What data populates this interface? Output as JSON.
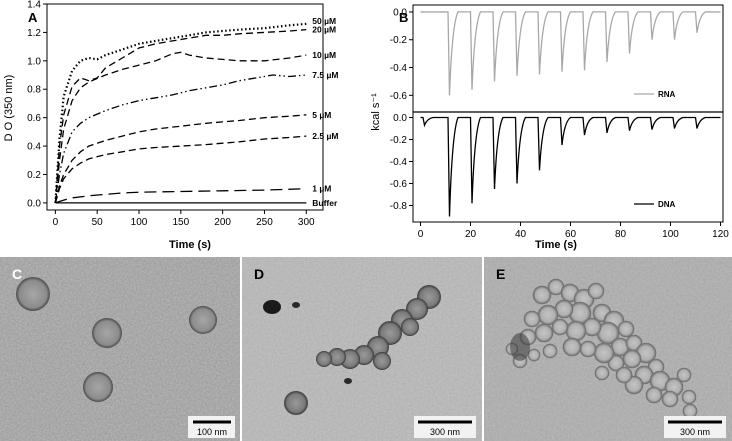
{
  "panel_labels": {
    "a": "A",
    "b": "B",
    "c": "C",
    "d": "D",
    "e": "E"
  },
  "micrographs": {
    "c": {
      "scale_label": "100 nm"
    },
    "d": {
      "scale_label": "300 nm"
    },
    "e": {
      "scale_label": "300 nm"
    }
  },
  "chart_data": [
    {
      "type": "line",
      "panel": "A",
      "xlabel": "Time (s)",
      "ylabel": "D O (350 nm)",
      "xlim": [
        -10,
        320
      ],
      "ylim": [
        -0.05,
        1.4
      ],
      "xticks": [
        0,
        50,
        100,
        150,
        200,
        250,
        300
      ],
      "yticks": [
        0.0,
        0.2,
        0.4,
        0.6,
        0.8,
        1.0,
        1.2,
        1.4
      ],
      "legend": "direct labels at right end of each curve",
      "series": [
        {
          "name": "50 µM",
          "style": "dotted",
          "x": [
            0,
            5,
            10,
            20,
            30,
            40,
            50,
            60,
            80,
            100,
            120,
            140,
            160,
            180,
            200,
            220,
            250,
            280,
            300
          ],
          "y": [
            0,
            0.45,
            0.75,
            0.93,
            1.0,
            1.02,
            1.01,
            1.04,
            1.08,
            1.12,
            1.14,
            1.16,
            1.18,
            1.2,
            1.21,
            1.22,
            1.23,
            1.25,
            1.26
          ]
        },
        {
          "name": "20 µM",
          "style": "dashed",
          "x": [
            0,
            5,
            10,
            20,
            30,
            40,
            50,
            60,
            80,
            100,
            120,
            140,
            160,
            180,
            200,
            220,
            250,
            280,
            300
          ],
          "y": [
            0,
            0.4,
            0.62,
            0.82,
            0.88,
            0.86,
            0.88,
            0.95,
            1.02,
            1.09,
            1.12,
            1.14,
            1.16,
            1.18,
            1.18,
            1.19,
            1.2,
            1.21,
            1.22
          ]
        },
        {
          "name": "10 µM",
          "style": "dashed",
          "x": [
            0,
            5,
            10,
            20,
            30,
            40,
            60,
            80,
            100,
            120,
            140,
            150,
            160,
            180,
            200,
            220,
            250,
            280,
            300
          ],
          "y": [
            0,
            0.3,
            0.52,
            0.72,
            0.81,
            0.85,
            0.9,
            0.94,
            0.97,
            1.0,
            1.05,
            1.06,
            1.04,
            1.02,
            1.01,
            1.0,
            1.0,
            1.02,
            1.04
          ]
        },
        {
          "name": "7.5 µM",
          "style": "dash-dot-dot",
          "x": [
            0,
            5,
            10,
            20,
            30,
            40,
            60,
            80,
            100,
            120,
            140,
            160,
            180,
            200,
            220,
            240,
            260,
            280,
            300
          ],
          "y": [
            0,
            0.2,
            0.35,
            0.5,
            0.56,
            0.6,
            0.65,
            0.69,
            0.72,
            0.74,
            0.76,
            0.79,
            0.81,
            0.83,
            0.86,
            0.88,
            0.9,
            0.89,
            0.9
          ]
        },
        {
          "name": "5 µM",
          "style": "dashed",
          "x": [
            0,
            5,
            10,
            20,
            30,
            40,
            60,
            80,
            100,
            120,
            150,
            180,
            200,
            220,
            250,
            280,
            300
          ],
          "y": [
            0,
            0.12,
            0.2,
            0.3,
            0.36,
            0.4,
            0.44,
            0.47,
            0.5,
            0.52,
            0.54,
            0.56,
            0.57,
            0.58,
            0.6,
            0.61,
            0.62
          ]
        },
        {
          "name": "2.5 µM",
          "style": "dashed",
          "x": [
            0,
            5,
            10,
            20,
            30,
            40,
            60,
            80,
            100,
            120,
            150,
            180,
            200,
            220,
            250,
            280,
            300
          ],
          "y": [
            0,
            0.1,
            0.17,
            0.24,
            0.28,
            0.31,
            0.34,
            0.36,
            0.38,
            0.39,
            0.4,
            0.41,
            0.42,
            0.43,
            0.45,
            0.46,
            0.47
          ]
        },
        {
          "name": "1 µM",
          "style": "long-dashed",
          "x": [
            0,
            5,
            10,
            20,
            40,
            60,
            80,
            100,
            150,
            200,
            250,
            300
          ],
          "y": [
            0,
            0.01,
            0.02,
            0.035,
            0.05,
            0.06,
            0.07,
            0.075,
            0.08,
            0.085,
            0.09,
            0.1
          ]
        },
        {
          "name": "Buffer",
          "style": "solid",
          "x": [
            0,
            300
          ],
          "y": [
            0,
            0
          ]
        }
      ]
    },
    {
      "type": "line",
      "panel": "B",
      "xlabel": "Time (s)",
      "ylabel": "kcal s⁻¹",
      "xlim": [
        -3,
        121
      ],
      "xticks": [
        0,
        20,
        40,
        60,
        80,
        100,
        120
      ],
      "legend": "bottom-right of each subplot",
      "subplots": [
        {
          "name": "RNA",
          "color": "#a8a8a8",
          "ylim": [
            -0.72,
            0.05
          ],
          "yticks": [
            0.0,
            -0.2,
            -0.4,
            -0.6
          ],
          "injection_times": [
            11,
            20,
            29,
            38,
            47,
            56,
            65,
            74,
            83,
            92,
            101,
            110
          ],
          "peak_values": [
            -0.6,
            -0.56,
            -0.5,
            -0.46,
            -0.45,
            -0.43,
            -0.42,
            -0.36,
            -0.3,
            -0.2,
            -0.2,
            -0.15
          ]
        },
        {
          "name": "DNA",
          "color": "#000000",
          "ylim": [
            -0.95,
            0.05
          ],
          "yticks": [
            0.0,
            -0.2,
            -0.4,
            -0.6,
            -0.8
          ],
          "injection_times": [
            1,
            11,
            20,
            29,
            38,
            47,
            56,
            65,
            74,
            83,
            92,
            101,
            110
          ],
          "peak_values": [
            -0.07,
            -0.9,
            -0.78,
            -0.65,
            -0.6,
            -0.48,
            -0.25,
            -0.16,
            -0.14,
            -0.12,
            -0.11,
            -0.1,
            -0.1
          ]
        }
      ]
    }
  ]
}
